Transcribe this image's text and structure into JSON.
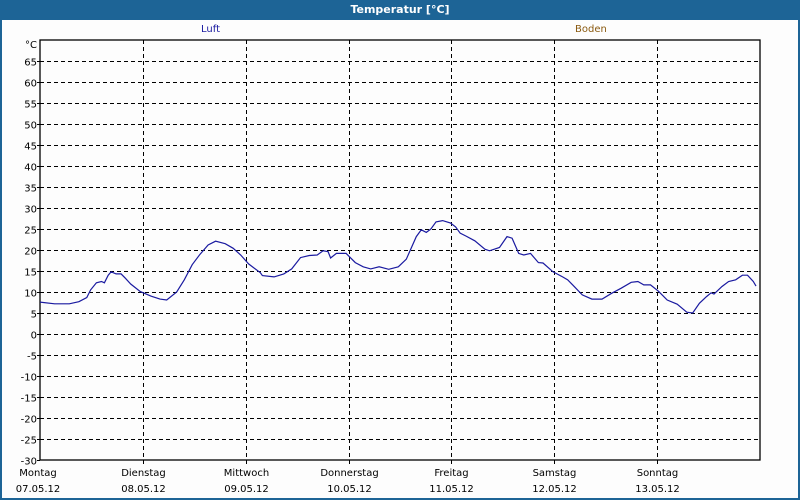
{
  "window": {
    "title": "Temperatur [°C]",
    "accent_color": "#1d6496"
  },
  "legend": {
    "luft": {
      "label": "Luft",
      "color": "#1a1aa0"
    },
    "boden": {
      "label": "Boden",
      "color": "#8a5a10"
    }
  },
  "chart_data": {
    "type": "line",
    "title": "Temperatur [°C]",
    "xlabel": "",
    "ylabel": "°C",
    "ylim": [
      -30,
      65
    ],
    "yticks": [
      65,
      60,
      55,
      50,
      45,
      40,
      35,
      30,
      25,
      20,
      15,
      10,
      5,
      0,
      -5,
      -10,
      -15,
      -20,
      -25,
      -30
    ],
    "grid": true,
    "legend_position": "top",
    "x_unit": "hours since 07.05.12 00:00",
    "xlim": [
      0,
      168
    ],
    "x_ticks": [
      {
        "day": "Montag",
        "date": "07.05.12",
        "hour": 0
      },
      {
        "day": "Dienstag",
        "date": "08.05.12",
        "hour": 24
      },
      {
        "day": "Mittwoch",
        "date": "09.05.12",
        "hour": 48
      },
      {
        "day": "Donnerstag",
        "date": "10.05.12",
        "hour": 72
      },
      {
        "day": "Freitag",
        "date": "11.05.12",
        "hour": 96
      },
      {
        "day": "Samstag",
        "date": "12.05.12",
        "hour": 120
      },
      {
        "day": "Sonntag",
        "date": "13.05.12",
        "hour": 144
      }
    ],
    "series": [
      {
        "name": "Luft",
        "color": "#1a1aa0",
        "points": [
          [
            0.0,
            7.6
          ],
          [
            3.5,
            7.2
          ],
          [
            7.0,
            7.2
          ],
          [
            9.3,
            7.7
          ],
          [
            11.2,
            8.7
          ],
          [
            12.1,
            10.5
          ],
          [
            13.5,
            12.2
          ],
          [
            14.7,
            12.5
          ],
          [
            15.4,
            12.2
          ],
          [
            16.3,
            14.0
          ],
          [
            17.0,
            14.8
          ],
          [
            18.2,
            14.3
          ],
          [
            19.4,
            14.3
          ],
          [
            20.5,
            13.2
          ],
          [
            21.7,
            11.9
          ],
          [
            24.0,
            10.1
          ],
          [
            26.6,
            9.0
          ],
          [
            28.7,
            8.3
          ],
          [
            30.3,
            8.1
          ],
          [
            32.7,
            10.0
          ],
          [
            34.5,
            12.9
          ],
          [
            36.4,
            16.5
          ],
          [
            38.3,
            19.0
          ],
          [
            40.2,
            21.2
          ],
          [
            42.0,
            22.1
          ],
          [
            44.3,
            21.5
          ],
          [
            46.2,
            20.4
          ],
          [
            48.0,
            18.8
          ],
          [
            49.9,
            16.7
          ],
          [
            52.7,
            14.6
          ],
          [
            53.2,
            13.9
          ],
          [
            56.0,
            13.6
          ],
          [
            58.3,
            14.3
          ],
          [
            60.2,
            15.5
          ],
          [
            62.3,
            18.2
          ],
          [
            64.4,
            18.7
          ],
          [
            66.3,
            18.8
          ],
          [
            67.7,
            19.8
          ],
          [
            68.9,
            19.6
          ],
          [
            69.5,
            18.1
          ],
          [
            70.9,
            19.2
          ],
          [
            73.2,
            19.2
          ],
          [
            75.4,
            17.0
          ],
          [
            77.3,
            16.0
          ],
          [
            79.1,
            15.5
          ],
          [
            81.1,
            16.0
          ],
          [
            83.4,
            15.4
          ],
          [
            85.7,
            16.0
          ],
          [
            87.6,
            17.8
          ],
          [
            90.0,
            23.2
          ],
          [
            91.2,
            24.8
          ],
          [
            92.4,
            24.2
          ],
          [
            93.5,
            25.0
          ],
          [
            94.7,
            26.7
          ],
          [
            96.3,
            27.0
          ],
          [
            98.2,
            26.4
          ],
          [
            99.4,
            25.5
          ],
          [
            100.5,
            24.0
          ],
          [
            101.9,
            23.3
          ],
          [
            104.0,
            22.2
          ],
          [
            106.4,
            20.2
          ],
          [
            107.5,
            19.8
          ],
          [
            109.9,
            20.6
          ],
          [
            111.7,
            23.2
          ],
          [
            112.9,
            22.8
          ],
          [
            114.5,
            19.2
          ],
          [
            115.7,
            18.8
          ],
          [
            117.3,
            19.2
          ],
          [
            119.2,
            17.0
          ],
          [
            120.3,
            16.9
          ],
          [
            122.7,
            14.8
          ],
          [
            125.0,
            13.6
          ],
          [
            126.2,
            12.9
          ],
          [
            127.4,
            11.7
          ],
          [
            129.7,
            9.3
          ],
          [
            132.0,
            8.3
          ],
          [
            134.4,
            8.3
          ],
          [
            136.7,
            9.7
          ],
          [
            139.0,
            10.9
          ],
          [
            141.4,
            12.3
          ],
          [
            143.0,
            12.5
          ],
          [
            144.4,
            11.7
          ],
          [
            146.0,
            11.7
          ],
          [
            147.9,
            10.2
          ],
          [
            150.0,
            8.1
          ],
          [
            152.4,
            7.1
          ],
          [
            154.7,
            5.2
          ],
          [
            156.1,
            5.0
          ],
          [
            157.7,
            7.3
          ],
          [
            159.4,
            8.9
          ],
          [
            160.5,
            9.8
          ],
          [
            161.2,
            9.5
          ],
          [
            163.1,
            11.3
          ],
          [
            164.7,
            12.5
          ],
          [
            166.4,
            12.9
          ],
          [
            168.0,
            14.0
          ]
        ]
      },
      {
        "name": "Boden",
        "color": "#8a5a10",
        "points": []
      }
    ],
    "tail_points_note_removed": true,
    "extra_points": [
      [
        169.2,
        14.0
      ],
      [
        170.6,
        12.5
      ],
      [
        172.2,
        11.4
      ]
    ]
  }
}
